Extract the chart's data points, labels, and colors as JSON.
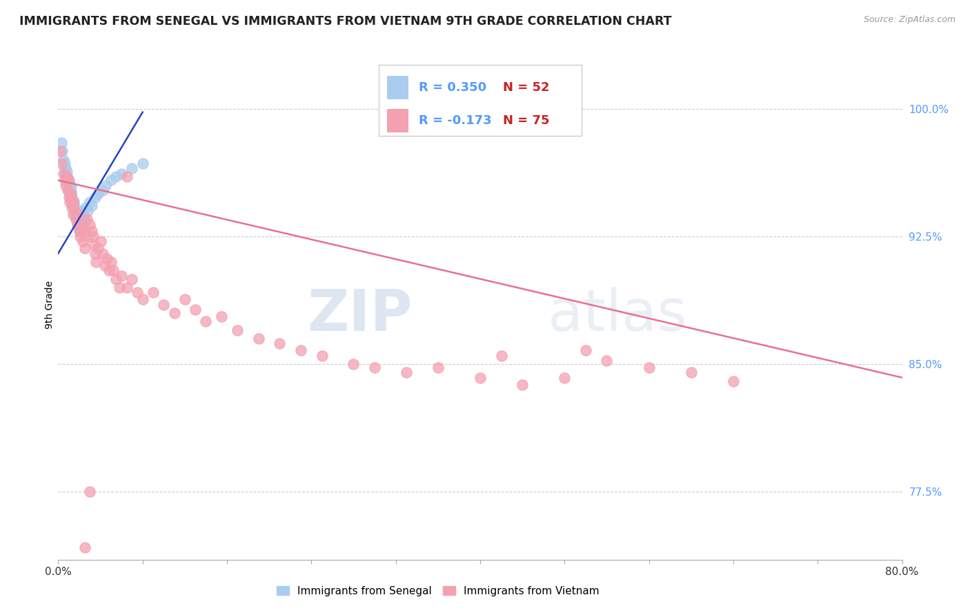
{
  "title": "IMMIGRANTS FROM SENEGAL VS IMMIGRANTS FROM VIETNAM 9TH GRADE CORRELATION CHART",
  "source": "Source: ZipAtlas.com",
  "ylabel": "9th Grade",
  "y_tick_labels": [
    "77.5%",
    "85.0%",
    "92.5%",
    "100.0%"
  ],
  "y_tick_values": [
    0.775,
    0.85,
    0.925,
    1.0
  ],
  "xlim": [
    0.0,
    0.8
  ],
  "ylim": [
    0.735,
    1.035
  ],
  "legend_r_senegal": "R = 0.350",
  "legend_n_senegal": "N = 52",
  "legend_r_vietnam": "R = -0.173",
  "legend_n_vietnam": "N = 75",
  "color_senegal": "#aaccee",
  "color_vietnam": "#f4a0b0",
  "color_senegal_line": "#2244bb",
  "color_vietnam_line": "#e87090",
  "color_ytick": "#5599ff",
  "color_xtick": "#333333",
  "watermark_zip": "ZIP",
  "watermark_atlas": "atlas",
  "background_color": "#ffffff",
  "senegal_x": [
    0.003,
    0.004,
    0.005,
    0.006,
    0.006,
    0.007,
    0.007,
    0.008,
    0.008,
    0.008,
    0.009,
    0.009,
    0.009,
    0.01,
    0.01,
    0.01,
    0.011,
    0.011,
    0.011,
    0.012,
    0.012,
    0.012,
    0.013,
    0.013,
    0.014,
    0.014,
    0.015,
    0.015,
    0.016,
    0.016,
    0.017,
    0.018,
    0.019,
    0.02,
    0.021,
    0.022,
    0.023,
    0.024,
    0.025,
    0.026,
    0.028,
    0.03,
    0.032,
    0.035,
    0.038,
    0.042,
    0.045,
    0.05,
    0.055,
    0.06,
    0.07,
    0.08
  ],
  "senegal_y": [
    0.98,
    0.975,
    0.97,
    0.965,
    0.968,
    0.962,
    0.965,
    0.958,
    0.96,
    0.963,
    0.955,
    0.957,
    0.959,
    0.952,
    0.955,
    0.957,
    0.95,
    0.952,
    0.955,
    0.948,
    0.951,
    0.954,
    0.945,
    0.948,
    0.943,
    0.946,
    0.94,
    0.943,
    0.938,
    0.941,
    0.936,
    0.934,
    0.932,
    0.93,
    0.928,
    0.94,
    0.938,
    0.936,
    0.934,
    0.942,
    0.94,
    0.945,
    0.943,
    0.948,
    0.95,
    0.952,
    0.955,
    0.958,
    0.96,
    0.962,
    0.965,
    0.968
  ],
  "vietnam_x": [
    0.002,
    0.003,
    0.005,
    0.006,
    0.007,
    0.008,
    0.009,
    0.01,
    0.01,
    0.011,
    0.012,
    0.013,
    0.014,
    0.015,
    0.016,
    0.017,
    0.018,
    0.019,
    0.02,
    0.021,
    0.022,
    0.023,
    0.025,
    0.026,
    0.027,
    0.028,
    0.03,
    0.032,
    0.033,
    0.034,
    0.035,
    0.036,
    0.038,
    0.04,
    0.042,
    0.044,
    0.046,
    0.048,
    0.05,
    0.052,
    0.055,
    0.058,
    0.06,
    0.065,
    0.07,
    0.075,
    0.08,
    0.09,
    0.1,
    0.11,
    0.12,
    0.13,
    0.14,
    0.155,
    0.17,
    0.19,
    0.21,
    0.23,
    0.25,
    0.28,
    0.3,
    0.33,
    0.36,
    0.4,
    0.44,
    0.48,
    0.52,
    0.56,
    0.6,
    0.64,
    0.5,
    0.42,
    0.065,
    0.03,
    0.025
  ],
  "vietnam_y": [
    0.975,
    0.968,
    0.962,
    0.958,
    0.955,
    0.96,
    0.952,
    0.958,
    0.948,
    0.945,
    0.95,
    0.942,
    0.938,
    0.945,
    0.94,
    0.935,
    0.932,
    0.938,
    0.928,
    0.925,
    0.93,
    0.922,
    0.918,
    0.928,
    0.935,
    0.925,
    0.932,
    0.928,
    0.925,
    0.92,
    0.915,
    0.91,
    0.918,
    0.922,
    0.915,
    0.908,
    0.912,
    0.905,
    0.91,
    0.905,
    0.9,
    0.895,
    0.902,
    0.895,
    0.9,
    0.892,
    0.888,
    0.892,
    0.885,
    0.88,
    0.888,
    0.882,
    0.875,
    0.878,
    0.87,
    0.865,
    0.862,
    0.858,
    0.855,
    0.85,
    0.848,
    0.845,
    0.848,
    0.842,
    0.838,
    0.842,
    0.852,
    0.848,
    0.845,
    0.84,
    0.858,
    0.855,
    0.96,
    0.775,
    0.742
  ],
  "senegal_line_x": [
    0.0,
    0.08
  ],
  "senegal_line_y": [
    0.915,
    0.998
  ],
  "vietnam_line_x": [
    0.0,
    0.8
  ],
  "vietnam_line_y": [
    0.958,
    0.842
  ]
}
